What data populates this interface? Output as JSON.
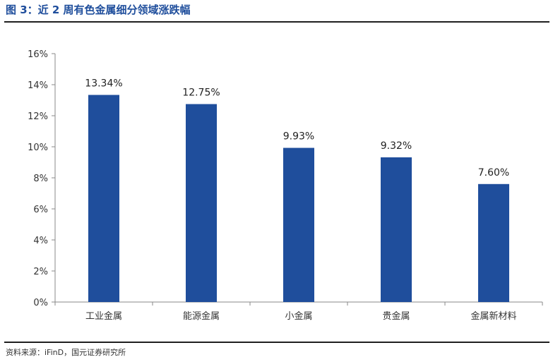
{
  "figure": {
    "title": "图 3：近 2 周有色金属细分领域涨跌幅",
    "source": "资料来源：iFinD，国元证券研究所"
  },
  "colors": {
    "bar": "#1F4E9C",
    "title": "#1F4E9C",
    "axis": "#888888"
  },
  "chart_data": {
    "type": "bar",
    "categories": [
      "工业金属",
      "能源金属",
      "小金属",
      "贵金属",
      "金属新材料"
    ],
    "values": [
      13.34,
      12.75,
      9.93,
      9.32,
      7.6
    ],
    "data_labels": [
      "13.34%",
      "12.75%",
      "9.93%",
      "9.32%",
      "7.60%"
    ],
    "title": "",
    "xlabel": "",
    "ylabel": "",
    "ylim": [
      0,
      16
    ],
    "yticks": [
      0,
      2,
      4,
      6,
      8,
      10,
      12,
      14,
      16
    ],
    "ytick_labels": [
      "0%",
      "2%",
      "4%",
      "6%",
      "8%",
      "10%",
      "12%",
      "14%",
      "16%"
    ],
    "grid": false,
    "legend": "none"
  }
}
